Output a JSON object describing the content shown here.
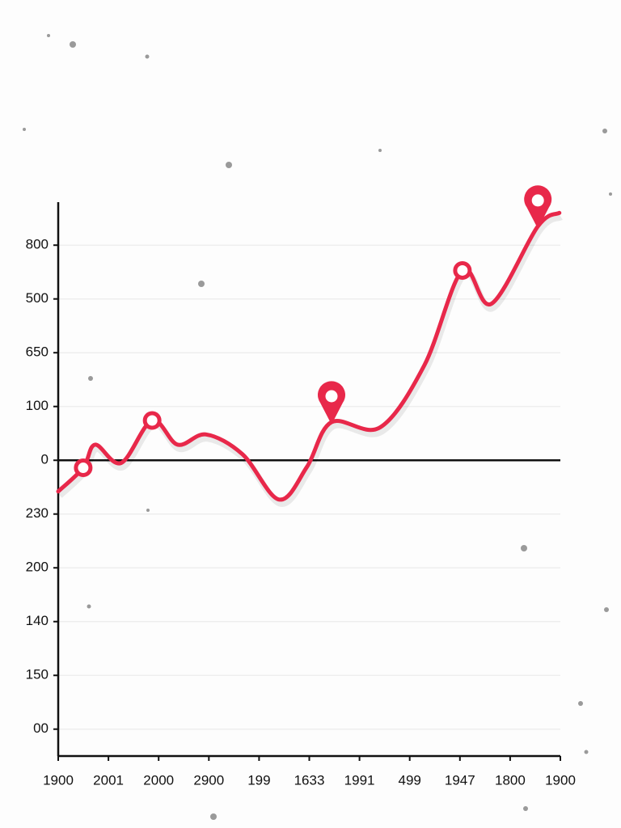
{
  "chart_data": {
    "type": "line",
    "categories": [
      "1900",
      "2001",
      "2000",
      "2900",
      "199",
      "1633",
      "1991",
      "499",
      "1947",
      "1800",
      "1900"
    ],
    "xlim": [
      0,
      10.05
    ],
    "ylim": [
      -5.5,
      4.8
    ],
    "yticks": [
      {
        "value": 4,
        "label": "800"
      },
      {
        "value": 3,
        "label": "500"
      },
      {
        "value": 2,
        "label": "650"
      },
      {
        "value": 1,
        "label": "100"
      },
      0,
      {
        "value": -1,
        "label": "230"
      },
      {
        "value": -2,
        "label": "200"
      },
      {
        "value": -3,
        "label": "140"
      },
      {
        "value": -4,
        "label": "150"
      },
      {
        "value": -5,
        "label": "00"
      }
    ],
    "grid": true,
    "series": [
      {
        "color": "#e8284a",
        "x": [
          0,
          0.5,
          0.74,
          1.26,
          1.88,
          2.39,
          2.96,
          3.69,
          4.42,
          4.98,
          5.47,
          6.44,
          7.33,
          8.09,
          8.67,
          9.6,
          10.03
        ],
        "values": [
          -0.58,
          -0.14,
          0.29,
          -0.05,
          0.74,
          0.29,
          0.48,
          0.11,
          -0.73,
          -0.12,
          0.71,
          0.61,
          1.77,
          3.53,
          2.91,
          4.35,
          4.6
        ]
      }
    ],
    "ring_markers": [
      1,
      4,
      13
    ],
    "pin_markers": [
      10,
      15
    ]
  }
}
